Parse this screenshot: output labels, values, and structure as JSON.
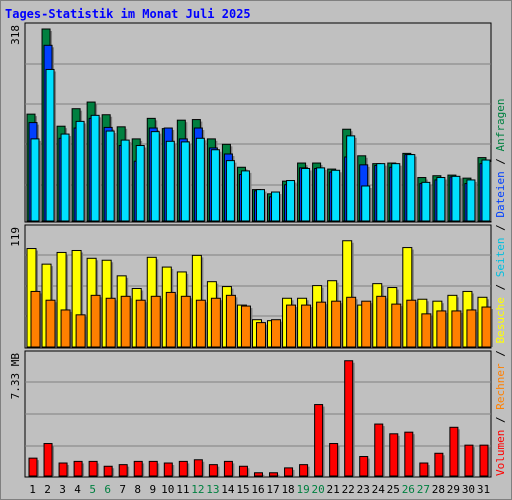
{
  "title": "Tages-Statistik im Monat Juli 2025",
  "legend": {
    "volumen": "Volumen",
    "rechner": "Rechner",
    "besuche": "Besuche",
    "seiten": "Seiten",
    "dateien": "Dateien",
    "anfragen": "Anfragen",
    "separator": " / "
  },
  "colors": {
    "anfragen": "#008040",
    "dateien": "#0040ff",
    "seiten": "#00e0ff",
    "besuche": "#ffff00",
    "rechner": "#ff8000",
    "volumen": "#ff0000",
    "weekend_label": "#008040"
  },
  "chart_data": [
    {
      "type": "bar",
      "ymax_label": "318",
      "ylim": [
        0,
        318
      ],
      "categories": [
        "1",
        "2",
        "3",
        "4",
        "5",
        "6",
        "7",
        "8",
        "9",
        "10",
        "11",
        "12",
        "13",
        "14",
        "15",
        "16",
        "17",
        "18",
        "19",
        "20",
        "21",
        "22",
        "23",
        "24",
        "25",
        "26",
        "27",
        "28",
        "29",
        "30",
        "31"
      ],
      "weekend_days": [
        "5",
        "6",
        "12",
        "13",
        "19",
        "20",
        "26",
        "27"
      ],
      "series": [
        {
          "name": "Anfragen",
          "values": [
            177,
            318,
            157,
            186,
            197,
            176,
            156,
            136,
            170,
            153,
            167,
            168,
            136,
            127,
            89,
            52,
            45,
            66,
            96,
            96,
            86,
            152,
            108,
            95,
            96,
            112,
            72,
            75,
            76,
            71,
            105
          ]
        },
        {
          "name": "Dateien",
          "values": [
            163,
            291,
            137,
            154,
            170,
            155,
            125,
            99,
            154,
            154,
            136,
            154,
            121,
            111,
            77,
            50,
            40,
            60,
            88,
            87,
            81,
            106,
            93,
            92,
            89,
            110,
            62,
            68,
            73,
            62,
            95
          ]
        },
        {
          "name": "Seiten",
          "values": [
            136,
            251,
            144,
            165,
            175,
            149,
            134,
            125,
            148,
            132,
            131,
            137,
            118,
            100,
            83,
            52,
            48,
            67,
            87,
            88,
            84,
            141,
            58,
            95,
            95,
            110,
            64,
            72,
            74,
            68,
            101
          ]
        }
      ]
    },
    {
      "type": "bar",
      "ymax_label": "119",
      "ylim": [
        0,
        119
      ],
      "categories": [
        "1",
        "2",
        "3",
        "4",
        "5",
        "6",
        "7",
        "8",
        "9",
        "10",
        "11",
        "12",
        "13",
        "14",
        "15",
        "16",
        "17",
        "18",
        "19",
        "20",
        "21",
        "22",
        "23",
        "24",
        "25",
        "26",
        "27",
        "28",
        "29",
        "30",
        "31"
      ],
      "series": [
        {
          "name": "Besuche",
          "values": [
            101,
            85,
            97,
            99,
            91,
            89,
            73,
            60,
            92,
            82,
            77,
            94,
            67,
            62,
            43,
            28,
            27,
            50,
            50,
            63,
            68,
            109,
            43,
            65,
            61,
            102,
            49,
            47,
            53,
            57,
            51
          ]
        },
        {
          "name": "Rechner",
          "values": [
            57,
            48,
            38,
            33,
            53,
            50,
            52,
            48,
            52,
            56,
            52,
            48,
            50,
            53,
            42,
            25,
            28,
            43,
            43,
            46,
            47,
            51,
            47,
            52,
            44,
            48,
            34,
            37,
            37,
            38,
            41
          ]
        }
      ]
    },
    {
      "type": "bar",
      "ymax_label": "7.33 MB",
      "ylim": [
        0,
        7.33
      ],
      "categories": [
        "1",
        "2",
        "3",
        "4",
        "5",
        "6",
        "7",
        "8",
        "9",
        "10",
        "11",
        "12",
        "13",
        "14",
        "15",
        "16",
        "17",
        "18",
        "19",
        "20",
        "21",
        "22",
        "23",
        "24",
        "25",
        "26",
        "27",
        "28",
        "29",
        "30",
        "31"
      ],
      "series": [
        {
          "name": "Volumen",
          "values": [
            1.1,
            2.0,
            0.8,
            0.9,
            0.9,
            0.6,
            0.7,
            0.9,
            0.9,
            0.8,
            0.9,
            1.0,
            0.7,
            0.9,
            0.6,
            0.2,
            0.2,
            0.5,
            0.7,
            4.4,
            2.0,
            7.1,
            1.2,
            3.2,
            2.6,
            2.7,
            0.8,
            1.4,
            3.0,
            1.9,
            1.9
          ]
        }
      ]
    }
  ]
}
